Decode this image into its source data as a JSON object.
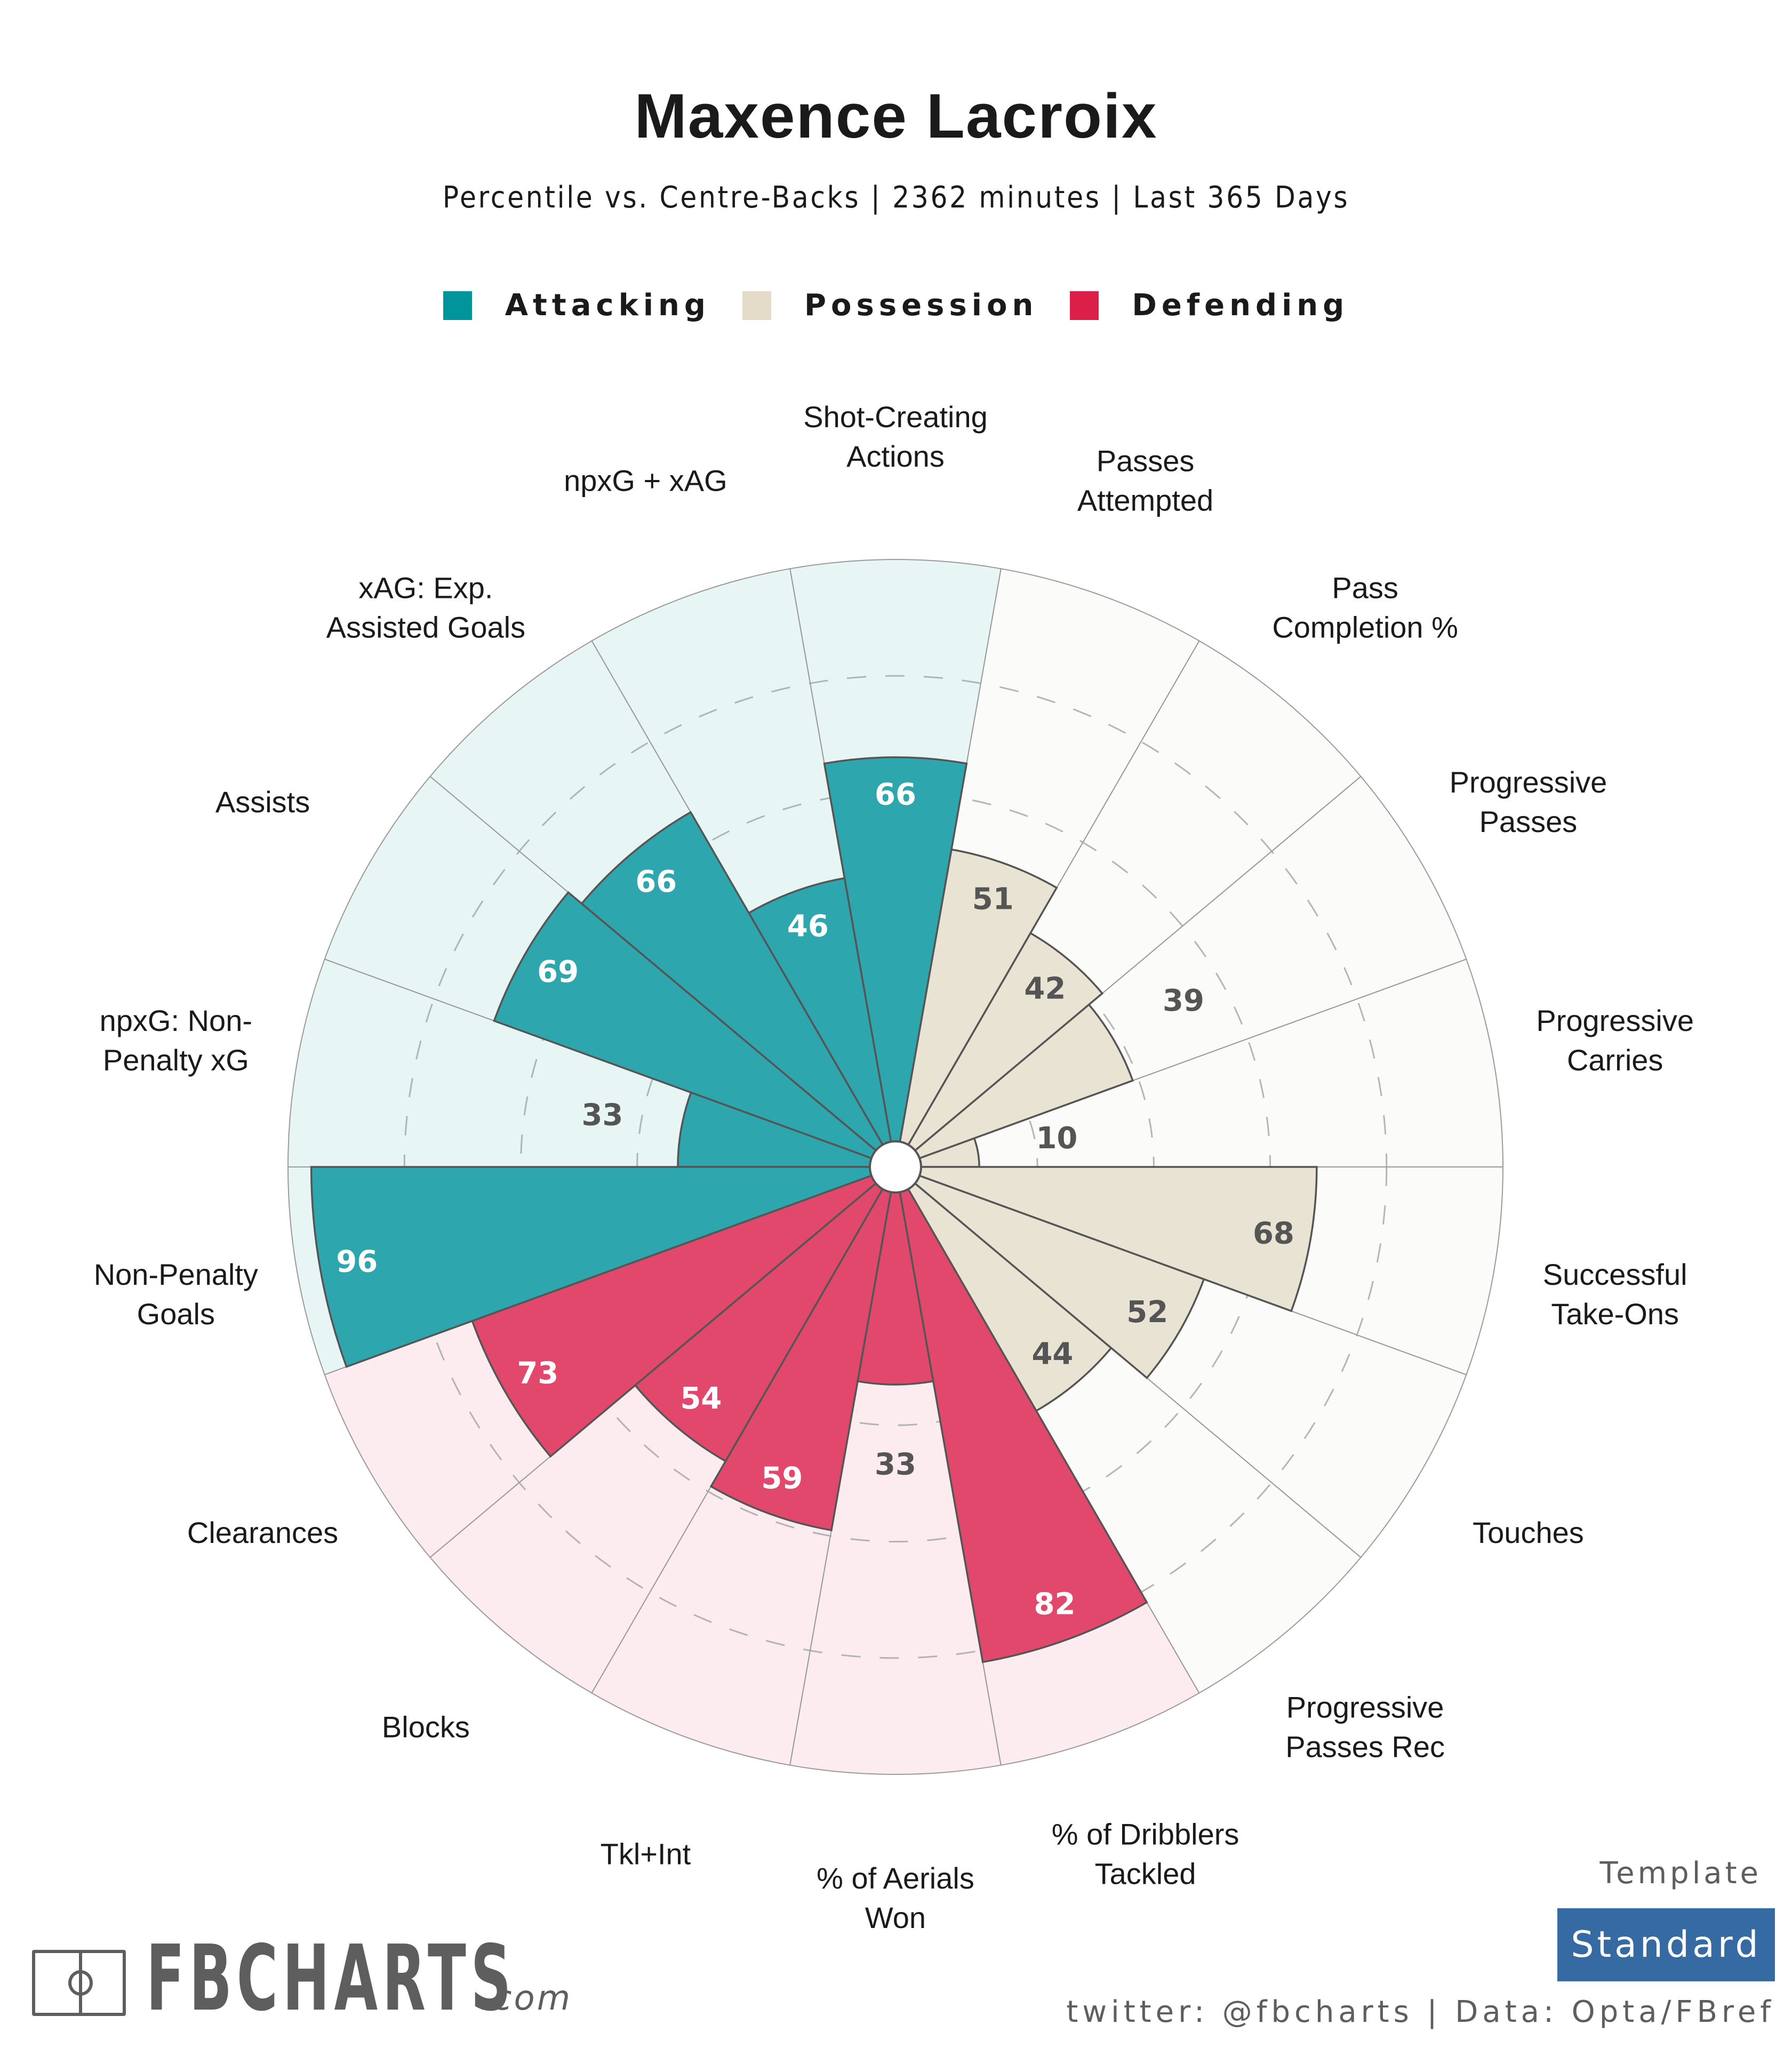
{
  "header": {
    "title": "Maxence Lacroix",
    "subtitle": "Percentile vs. Centre-Backs | 2362 minutes | Last 365 Days"
  },
  "legend": [
    {
      "label": "Attacking",
      "color": "#01949a"
    },
    {
      "label": "Possession",
      "color": "#e4dcc8"
    },
    {
      "label": "Defending",
      "color": "#db1f48"
    }
  ],
  "colors": {
    "Attacking": {
      "bar": "#2ea6ad",
      "bg": "#e8f5f5",
      "text": "#ffffff"
    },
    "Possession": {
      "bar": "#e8e3d3",
      "bg": "#fbfbf9",
      "text": "#555555"
    },
    "Defending": {
      "bar": "#e2486b",
      "bg": "#fcecf0",
      "text": "#ffffff"
    },
    "low_value_text": "#555555"
  },
  "chart_data": {
    "type": "polar-bar",
    "title": "Maxence Lacroix",
    "subtitle": "Percentile vs. Centre-Backs | 2362 minutes | Last 365 Days",
    "range": [
      0,
      100
    ],
    "gridlines": [
      20,
      40,
      60,
      80
    ],
    "legend_position": "top-center",
    "metrics": [
      {
        "label": "Progressive Carries",
        "value": 10,
        "group": "Possession"
      },
      {
        "label": "Progressive Passes",
        "value": 39,
        "group": "Possession"
      },
      {
        "label": "Pass Completion %",
        "value": 42,
        "group": "Possession"
      },
      {
        "label": "Passes Attempted",
        "value": 51,
        "group": "Possession"
      },
      {
        "label": "Shot-Creating Actions",
        "value": 66,
        "group": "Attacking"
      },
      {
        "label": "npxG + xAG",
        "value": 46,
        "group": "Attacking"
      },
      {
        "label": "xAG: Exp. Assisted Goals",
        "value": 66,
        "group": "Attacking"
      },
      {
        "label": "Assists",
        "value": 69,
        "group": "Attacking"
      },
      {
        "label": "npxG: Non-Penalty xG",
        "value": 33,
        "group": "Attacking"
      },
      {
        "label": "Non-Penalty Goals",
        "value": 96,
        "group": "Attacking"
      },
      {
        "label": "Clearances",
        "value": 73,
        "group": "Defending"
      },
      {
        "label": "Blocks",
        "value": 54,
        "group": "Defending"
      },
      {
        "label": "Tkl+Int",
        "value": 59,
        "group": "Defending"
      },
      {
        "label": "% of Aerials Won",
        "value": 33,
        "group": "Defending"
      },
      {
        "label": "% of Dribblers Tackled",
        "value": 82,
        "group": "Defending"
      },
      {
        "label": "Progressive Passes Rec",
        "value": 44,
        "group": "Possession"
      },
      {
        "label": "Touches",
        "value": 52,
        "group": "Possession"
      },
      {
        "label": "Successful Take-Ons",
        "value": 68,
        "group": "Possession"
      }
    ],
    "label_lines": [
      [
        "Progressive",
        "Carries"
      ],
      [
        "Progressive",
        "Passes"
      ],
      [
        "Pass",
        "Completion %"
      ],
      [
        "Passes",
        "Attempted"
      ],
      [
        "Shot-Creating",
        "Actions"
      ],
      [
        "npxG + xAG"
      ],
      [
        "xAG: Exp.",
        "Assisted Goals"
      ],
      [
        "Assists"
      ],
      [
        "npxG: Non-",
        "Penalty xG"
      ],
      [
        "Non-Penalty",
        "Goals"
      ],
      [
        "Clearances"
      ],
      [
        "Blocks"
      ],
      [
        "Tkl+Int"
      ],
      [
        "% of Aerials",
        "Won"
      ],
      [
        "% of Dribblers",
        "Tackled"
      ],
      [
        "Progressive",
        "Passes Rec"
      ],
      [
        "Touches"
      ],
      [
        "Successful",
        "Take-Ons"
      ]
    ]
  },
  "branding": {
    "logo_text": "FBCHARTS",
    "logo_suffix": ".com",
    "template_label": "Template",
    "template_value": "Standard",
    "footer": "twitter: @fbcharts | Data: Opta/FBref"
  }
}
